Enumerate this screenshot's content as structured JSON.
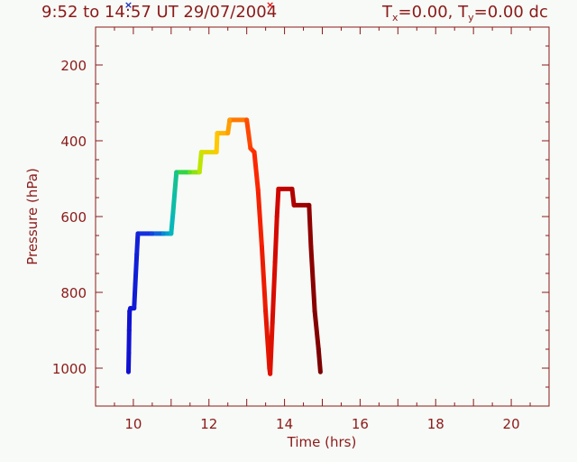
{
  "chart_data": {
    "type": "line",
    "title": {
      "prefix": "9:52 to 14:57 UT 29/07/2004",
      "tx_base": "T",
      "tx_sub": "x",
      "tx_val": "=0.00, ",
      "ty_base": "T",
      "ty_sub": "y",
      "ty_val": "=0.00 dc"
    },
    "xlabel": "Time  (hrs)",
    "ylabel": "Pressure  (hPa)",
    "xlim": [
      9,
      21
    ],
    "ylim": [
      1100,
      100
    ],
    "xticks": [
      10,
      12,
      14,
      16,
      18,
      20
    ],
    "yticks": [
      200,
      400,
      600,
      800,
      1000
    ],
    "start_marker": {
      "x": 9.87,
      "color": "#1a2bb8",
      "symbol": "×"
    },
    "end_marker": {
      "x": 13.62,
      "color": "#e01010",
      "symbol": "×"
    },
    "color_start": "#1010d0",
    "color_end": "#7a0000",
    "series": [
      {
        "values": [
          [
            9.87,
            1010
          ],
          [
            9.88,
            960
          ],
          [
            9.89,
            900
          ],
          [
            9.9,
            850
          ],
          [
            9.92,
            842
          ],
          [
            10.02,
            842
          ],
          [
            10.05,
            780
          ],
          [
            10.09,
            700
          ],
          [
            10.12,
            645
          ],
          [
            10.5,
            645
          ],
          [
            10.8,
            645
          ],
          [
            11.0,
            645
          ],
          [
            11.05,
            590
          ],
          [
            11.1,
            530
          ],
          [
            11.14,
            483
          ],
          [
            11.5,
            483
          ],
          [
            11.75,
            483
          ],
          [
            11.8,
            430
          ],
          [
            12.2,
            430
          ],
          [
            12.22,
            380
          ],
          [
            12.5,
            380
          ],
          [
            12.55,
            345
          ],
          [
            13.0,
            345
          ],
          [
            13.1,
            420
          ],
          [
            13.2,
            430
          ],
          [
            13.3,
            530
          ],
          [
            13.4,
            680
          ],
          [
            13.5,
            850
          ],
          [
            13.6,
            1000
          ],
          [
            13.62,
            1015
          ],
          [
            13.68,
            880
          ],
          [
            13.75,
            720
          ],
          [
            13.8,
            600
          ],
          [
            13.84,
            527
          ],
          [
            14.2,
            527
          ],
          [
            14.25,
            570
          ],
          [
            14.65,
            570
          ],
          [
            14.7,
            680
          ],
          [
            14.8,
            850
          ],
          [
            14.9,
            950
          ],
          [
            14.95,
            1010
          ]
        ]
      }
    ],
    "grid": false
  }
}
